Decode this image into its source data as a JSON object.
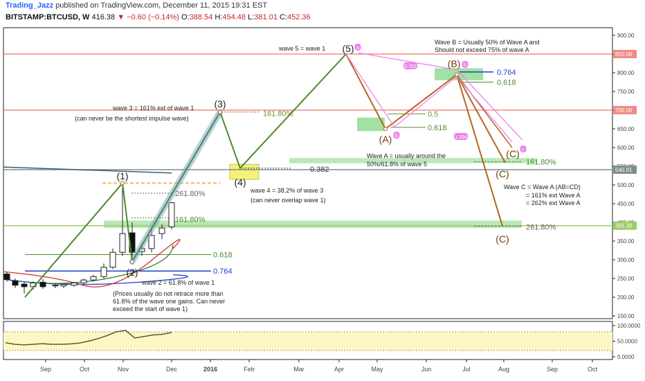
{
  "header": {
    "author": "Trading_Jazz",
    "published": "published on TradingView.com, December 11, 2015 19:31 EST",
    "symbol": "BITSTAMP:BTCUSD, W",
    "last": "416.38",
    "change_arrow": "▼",
    "change": "−0.60 (−0.14%)",
    "o_label": "O:",
    "o": "388.54",
    "h_label": "H:",
    "h": "454.48",
    "l_label": "L:",
    "l": "381.01",
    "c_label": "C:",
    "c": "452.36"
  },
  "colors": {
    "wave_green": "#4e8a2e",
    "wave_brown": "#b5651d",
    "pink": "#ee82ee",
    "fib_green": "#66cc66",
    "blue": "#1f3fcf",
    "red_line": "#e57373",
    "yellow_box": "#f5f17a"
  },
  "chart_data": {
    "type": "line",
    "title": "",
    "y_axis": {
      "ylim": [
        150,
        930
      ],
      "ticks": [
        "900.00",
        "850.00",
        "800.00",
        "750.00",
        "700.00",
        "650.00",
        "600.00",
        "550.00",
        "500.00",
        "450.00",
        "400.00",
        "350.00",
        "300.00",
        "250.00",
        "200.00",
        "150.00"
      ],
      "tick_values": [
        900,
        850,
        800,
        750,
        700,
        650,
        600,
        550,
        500,
        450,
        400,
        350,
        300,
        250,
        200,
        150
      ],
      "price_tags": [
        {
          "label": "850.00",
          "value": 850,
          "color": "#f28b82"
        },
        {
          "label": "700.00",
          "value": 700,
          "color": "#f28b82"
        },
        {
          "label": "540.91",
          "value": 540.91,
          "color": "#7d8f86"
        },
        {
          "label": "391.30",
          "value": 391.3,
          "color": "#9ccc65"
        }
      ]
    },
    "x_axis": {
      "tick_labels": [
        "Sep",
        "Oct",
        "Nov",
        "Dec",
        "2016",
        "Feb",
        "Mar",
        "Apr",
        "May",
        "Jun",
        "Jul",
        "Aug",
        "Sep",
        "Oct"
      ],
      "tick_values": [
        66,
        122,
        178,
        248,
        304,
        360,
        432,
        490,
        545,
        616,
        674,
        728,
        798,
        856
      ]
    },
    "candles": [
      {
        "x": 10,
        "o": 262,
        "h": 268,
        "l": 242,
        "c": 247
      },
      {
        "x": 22,
        "o": 244,
        "h": 250,
        "l": 225,
        "c": 232
      },
      {
        "x": 35,
        "o": 235,
        "h": 240,
        "l": 210,
        "c": 228
      },
      {
        "x": 48,
        "o": 228,
        "h": 242,
        "l": 220,
        "c": 238
      },
      {
        "x": 62,
        "o": 240,
        "h": 248,
        "l": 222,
        "c": 228
      },
      {
        "x": 80,
        "o": 230,
        "h": 236,
        "l": 224,
        "c": 232
      },
      {
        "x": 92,
        "o": 230,
        "h": 236,
        "l": 224,
        "c": 234
      },
      {
        "x": 107,
        "o": 232,
        "h": 240,
        "l": 228,
        "c": 238
      },
      {
        "x": 121,
        "o": 238,
        "h": 250,
        "l": 234,
        "c": 246
      },
      {
        "x": 135,
        "o": 246,
        "h": 260,
        "l": 242,
        "c": 255
      },
      {
        "x": 150,
        "o": 255,
        "h": 290,
        "l": 250,
        "c": 280
      },
      {
        "x": 163,
        "o": 280,
        "h": 330,
        "l": 275,
        "c": 320
      },
      {
        "x": 177,
        "o": 320,
        "h": 500,
        "l": 310,
        "c": 370
      },
      {
        "x": 191,
        "o": 372,
        "h": 400,
        "l": 300,
        "c": 320
      },
      {
        "x": 205,
        "o": 322,
        "h": 345,
        "l": 310,
        "c": 330
      },
      {
        "x": 219,
        "o": 330,
        "h": 380,
        "l": 320,
        "c": 365
      },
      {
        "x": 234,
        "o": 370,
        "h": 395,
        "l": 355,
        "c": 385
      },
      {
        "x": 248,
        "o": 388.54,
        "h": 454.48,
        "l": 381.01,
        "c": 452.36
      }
    ],
    "wave_points": [
      {
        "name": "start",
        "x": 36,
        "y": 200
      },
      {
        "name": "(1)",
        "x": 177,
        "y": 505
      },
      {
        "name": "(2)",
        "x": 191,
        "y": 295
      },
      {
        "name": "(3)",
        "x": 318,
        "y": 695
      },
      {
        "name": "(4)",
        "x": 347,
        "y": 545
      },
      {
        "name": "(5)",
        "x": 500,
        "y": 850
      },
      {
        "name": "(A)",
        "x": 557,
        "y": 650
      },
      {
        "name": "(B)",
        "x": 660,
        "y": 795
      },
      {
        "name": "(C) 161.8%",
        "x": 730,
        "y": 560
      },
      {
        "name": "(C) 261.8%",
        "x": 726,
        "y": 390
      }
    ],
    "pink_channel": [
      {
        "x": 500,
        "y": 850
      },
      {
        "x": 570,
        "y": 655
      },
      {
        "x": 660,
        "y": 790
      },
      {
        "x": 740,
        "y": 615
      },
      {
        "x": 518,
        "y": 853
      },
      {
        "x": 660,
        "y": 808
      },
      {
        "x": 755,
        "y": 620
      }
    ],
    "horizontal_levels": [
      {
        "label": "850",
        "value": 850,
        "color": "#f28b82"
      },
      {
        "label": "700",
        "value": 700,
        "color": "#f28b82"
      },
      {
        "label": "540.91",
        "value": 540.91,
        "color": "#7d8f86"
      },
      {
        "label": "391.30",
        "value": 391.3,
        "color": "#9ccc65"
      }
    ],
    "fib_labels": [
      {
        "text": "161.80%",
        "x": 380,
        "y": 692,
        "color": "#6a8f2e"
      },
      {
        "text": "0.382",
        "x": 448,
        "y": 543,
        "color": "#333333"
      },
      {
        "text": "0.764",
        "x": 718,
        "y": 802,
        "color": "#1f3fcf"
      },
      {
        "text": "0.618",
        "x": 718,
        "y": 775,
        "color": "#4e8a2e"
      },
      {
        "text": "0.5",
        "x": 618,
        "y": 690,
        "color": "#6a8f2e"
      },
      {
        "text": "0.618",
        "x": 618,
        "y": 654,
        "color": "#4e8a2e"
      },
      {
        "text": "161.80%",
        "x": 760,
        "y": 562,
        "color": "#4e8a2e"
      },
      {
        "text": "261.80%",
        "x": 760,
        "y": 388,
        "color": "#666666"
      },
      {
        "text": "261.80%",
        "x": 253,
        "y": 478,
        "color": "#666666"
      },
      {
        "text": "161.80%",
        "x": 253,
        "y": 408,
        "color": "#4e8a2e"
      },
      {
        "text": "0.618",
        "x": 308,
        "y": 314,
        "color": "#4e8a2e"
      },
      {
        "text": "0.764",
        "x": 308,
        "y": 270,
        "color": "#1f3fcf"
      }
    ],
    "annotations": [
      {
        "text": "wave 5 = wave 1"
      },
      {
        "text": "Wave B = Usually 50% of Wave A and"
      },
      {
        "text": "Should not exceed 75% of wave A"
      },
      {
        "text": "wave 3 = 161% ext of wave 1"
      },
      {
        "text": "(can never be the shortest impulse wave)"
      },
      {
        "text": "wave 4 = 38.2% of wave 3"
      },
      {
        "text": "(can never overlap wave 1)"
      },
      {
        "text": "Wave A = usually around the"
      },
      {
        "text": "50%/61.8% of wave 5"
      },
      {
        "text": "Wave C = Wave A (AB=CD)"
      },
      {
        "text": "= 161% ext Wave A"
      },
      {
        "text": "= 262% ext Wave A"
      },
      {
        "text": "wave 2 = 61.8% of wave 1"
      },
      {
        "text": "(Prices usually do not retrace more than"
      },
      {
        "text": "61.8% of the wave one gains. Can never"
      },
      {
        "text": "exceed the start of wave 1)"
      }
    ],
    "wave_labels": [
      "(1)",
      "(2)",
      "(3)",
      "(4)",
      "(5)",
      "(A)",
      "(B)",
      "(C)",
      "(C)",
      "(C)"
    ],
    "pink_markers": [
      "a",
      "b",
      "c",
      "0.702",
      "1.264"
    ],
    "indicator": {
      "ticks": [
        "100.0000",
        "50.0000",
        "0.0000"
      ],
      "tick_values": [
        100,
        50,
        0
      ],
      "band": [
        20,
        80
      ],
      "values": [
        45,
        40,
        38,
        40,
        42,
        40,
        40,
        41,
        44,
        50,
        58,
        68,
        80,
        85,
        60,
        65,
        70,
        72,
        78
      ]
    }
  }
}
